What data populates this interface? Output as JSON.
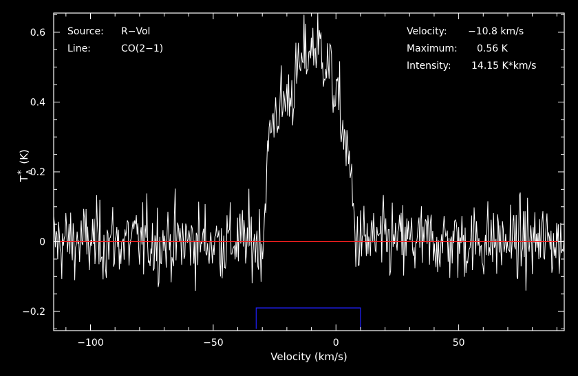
{
  "chart_data": {
    "type": "line",
    "xlabel": "Velocity (km/s)",
    "ylabel_main": "T",
    "ylabel_sup": "*",
    "ylabel_sub": "A",
    "ylabel_unit": "(K)",
    "xlim": [
      -115,
      93
    ],
    "ylim": [
      -0.255,
      0.655
    ],
    "xticks": [
      -100,
      -50,
      0,
      50
    ],
    "xtick_labels": [
      "−100",
      "−50",
      "0",
      "50"
    ],
    "yticks": [
      -0.2,
      0,
      0.2,
      0.4,
      0.6
    ],
    "ytick_labels": [
      "−0.2",
      "0",
      "0.2",
      "0.4",
      "0.6"
    ],
    "baseline_y": 0,
    "integration_window": {
      "x_start": -32.5,
      "x_end": 10,
      "y_top": -0.19,
      "y_bottom": -0.25
    },
    "series": [
      {
        "profile_points": [
          [
            -115,
            0
          ],
          [
            -29.5,
            0
          ],
          [
            -28.5,
            0.18
          ],
          [
            -27,
            0.3
          ],
          [
            -25,
            0.37
          ],
          [
            -22,
            0.39
          ],
          [
            -18,
            0.43
          ],
          [
            -15,
            0.49
          ],
          [
            -12,
            0.54
          ],
          [
            -9,
            0.56
          ],
          [
            -6,
            0.55
          ],
          [
            -3,
            0.5
          ],
          [
            0,
            0.42
          ],
          [
            2,
            0.36
          ],
          [
            3.5,
            0.3
          ],
          [
            5,
            0.24
          ],
          [
            6.5,
            0.15
          ],
          [
            7.5,
            0.05
          ],
          [
            8.5,
            0
          ],
          [
            93,
            0
          ]
        ],
        "noise_rms": 0.055,
        "channel_width_kms": 0.33
      }
    ],
    "grid": false,
    "legend": "none"
  },
  "info": {
    "source_label": "Source:",
    "source_value": "R−Vol",
    "line_label": "Line:",
    "line_value": "CO(2−1)",
    "velocity_label": "Velocity:",
    "velocity_value": "−10.8 km/s",
    "maximum_label": "Maximum:",
    "maximum_value": "0.56 K",
    "intensity_label": "Intensity:",
    "intensity_value": "14.15 K*km/s"
  },
  "colors": {
    "background": "#000000",
    "spectrum": "#ffffff",
    "baseline": "#ff2020",
    "window": "#2020ff",
    "frame": "#ffffff"
  }
}
